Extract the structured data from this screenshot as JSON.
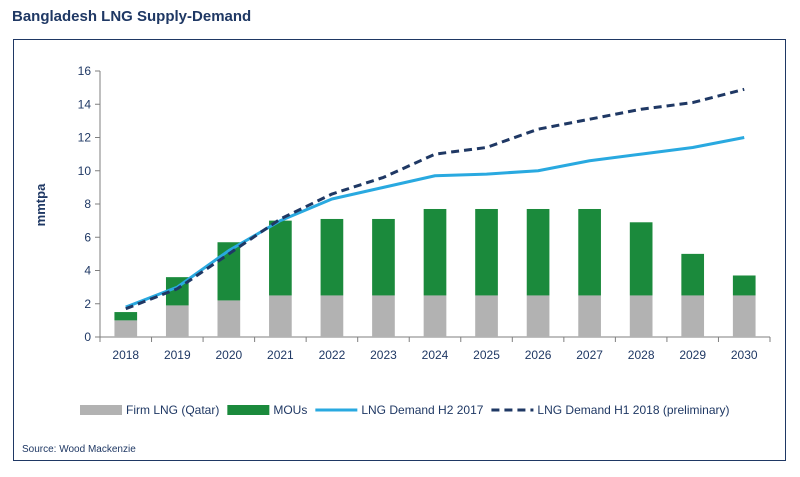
{
  "page": {
    "title": "Bangladesh LNG Supply-Demand",
    "source": "Source: Wood Mackenzie"
  },
  "chart_data": {
    "type": "bar",
    "title": "Bangladesh LNG Supply-Demand",
    "ylabel": "mmtpa",
    "xlabel": "",
    "ylim": [
      0,
      16
    ],
    "yticks": [
      0,
      2,
      4,
      6,
      8,
      10,
      12,
      14,
      16
    ],
    "categories": [
      "2018",
      "2019",
      "2020",
      "2021",
      "2022",
      "2023",
      "2024",
      "2025",
      "2026",
      "2027",
      "2028",
      "2029",
      "2030"
    ],
    "bar_series": [
      {
        "name": "Firm LNG (Qatar)",
        "color": "#b2b2b2",
        "values": [
          1.0,
          1.9,
          2.2,
          2.5,
          2.5,
          2.5,
          2.5,
          2.5,
          2.5,
          2.5,
          2.5,
          2.5,
          2.5
        ]
      },
      {
        "name": "MOUs",
        "color": "#1b8a3c",
        "values": [
          0.5,
          1.7,
          3.5,
          4.5,
          4.6,
          4.6,
          5.2,
          5.2,
          5.2,
          5.2,
          4.4,
          2.5,
          1.2
        ]
      }
    ],
    "line_series": [
      {
        "name": "LNG Demand H2 2017",
        "color": "#29a9e0",
        "style": "solid",
        "values": [
          1.8,
          3.0,
          5.2,
          7.0,
          8.3,
          9.0,
          9.7,
          9.8,
          10.0,
          10.6,
          11.0,
          11.4,
          12.0
        ]
      },
      {
        "name": "LNG Demand H1 2018 (preliminary)",
        "color": "#1f3864",
        "style": "dashed",
        "values": [
          1.7,
          2.9,
          5.0,
          7.1,
          8.6,
          9.6,
          11.0,
          11.4,
          12.5,
          13.1,
          13.7,
          14.1,
          14.9
        ]
      }
    ],
    "legend_position": "bottom",
    "grid": false
  }
}
